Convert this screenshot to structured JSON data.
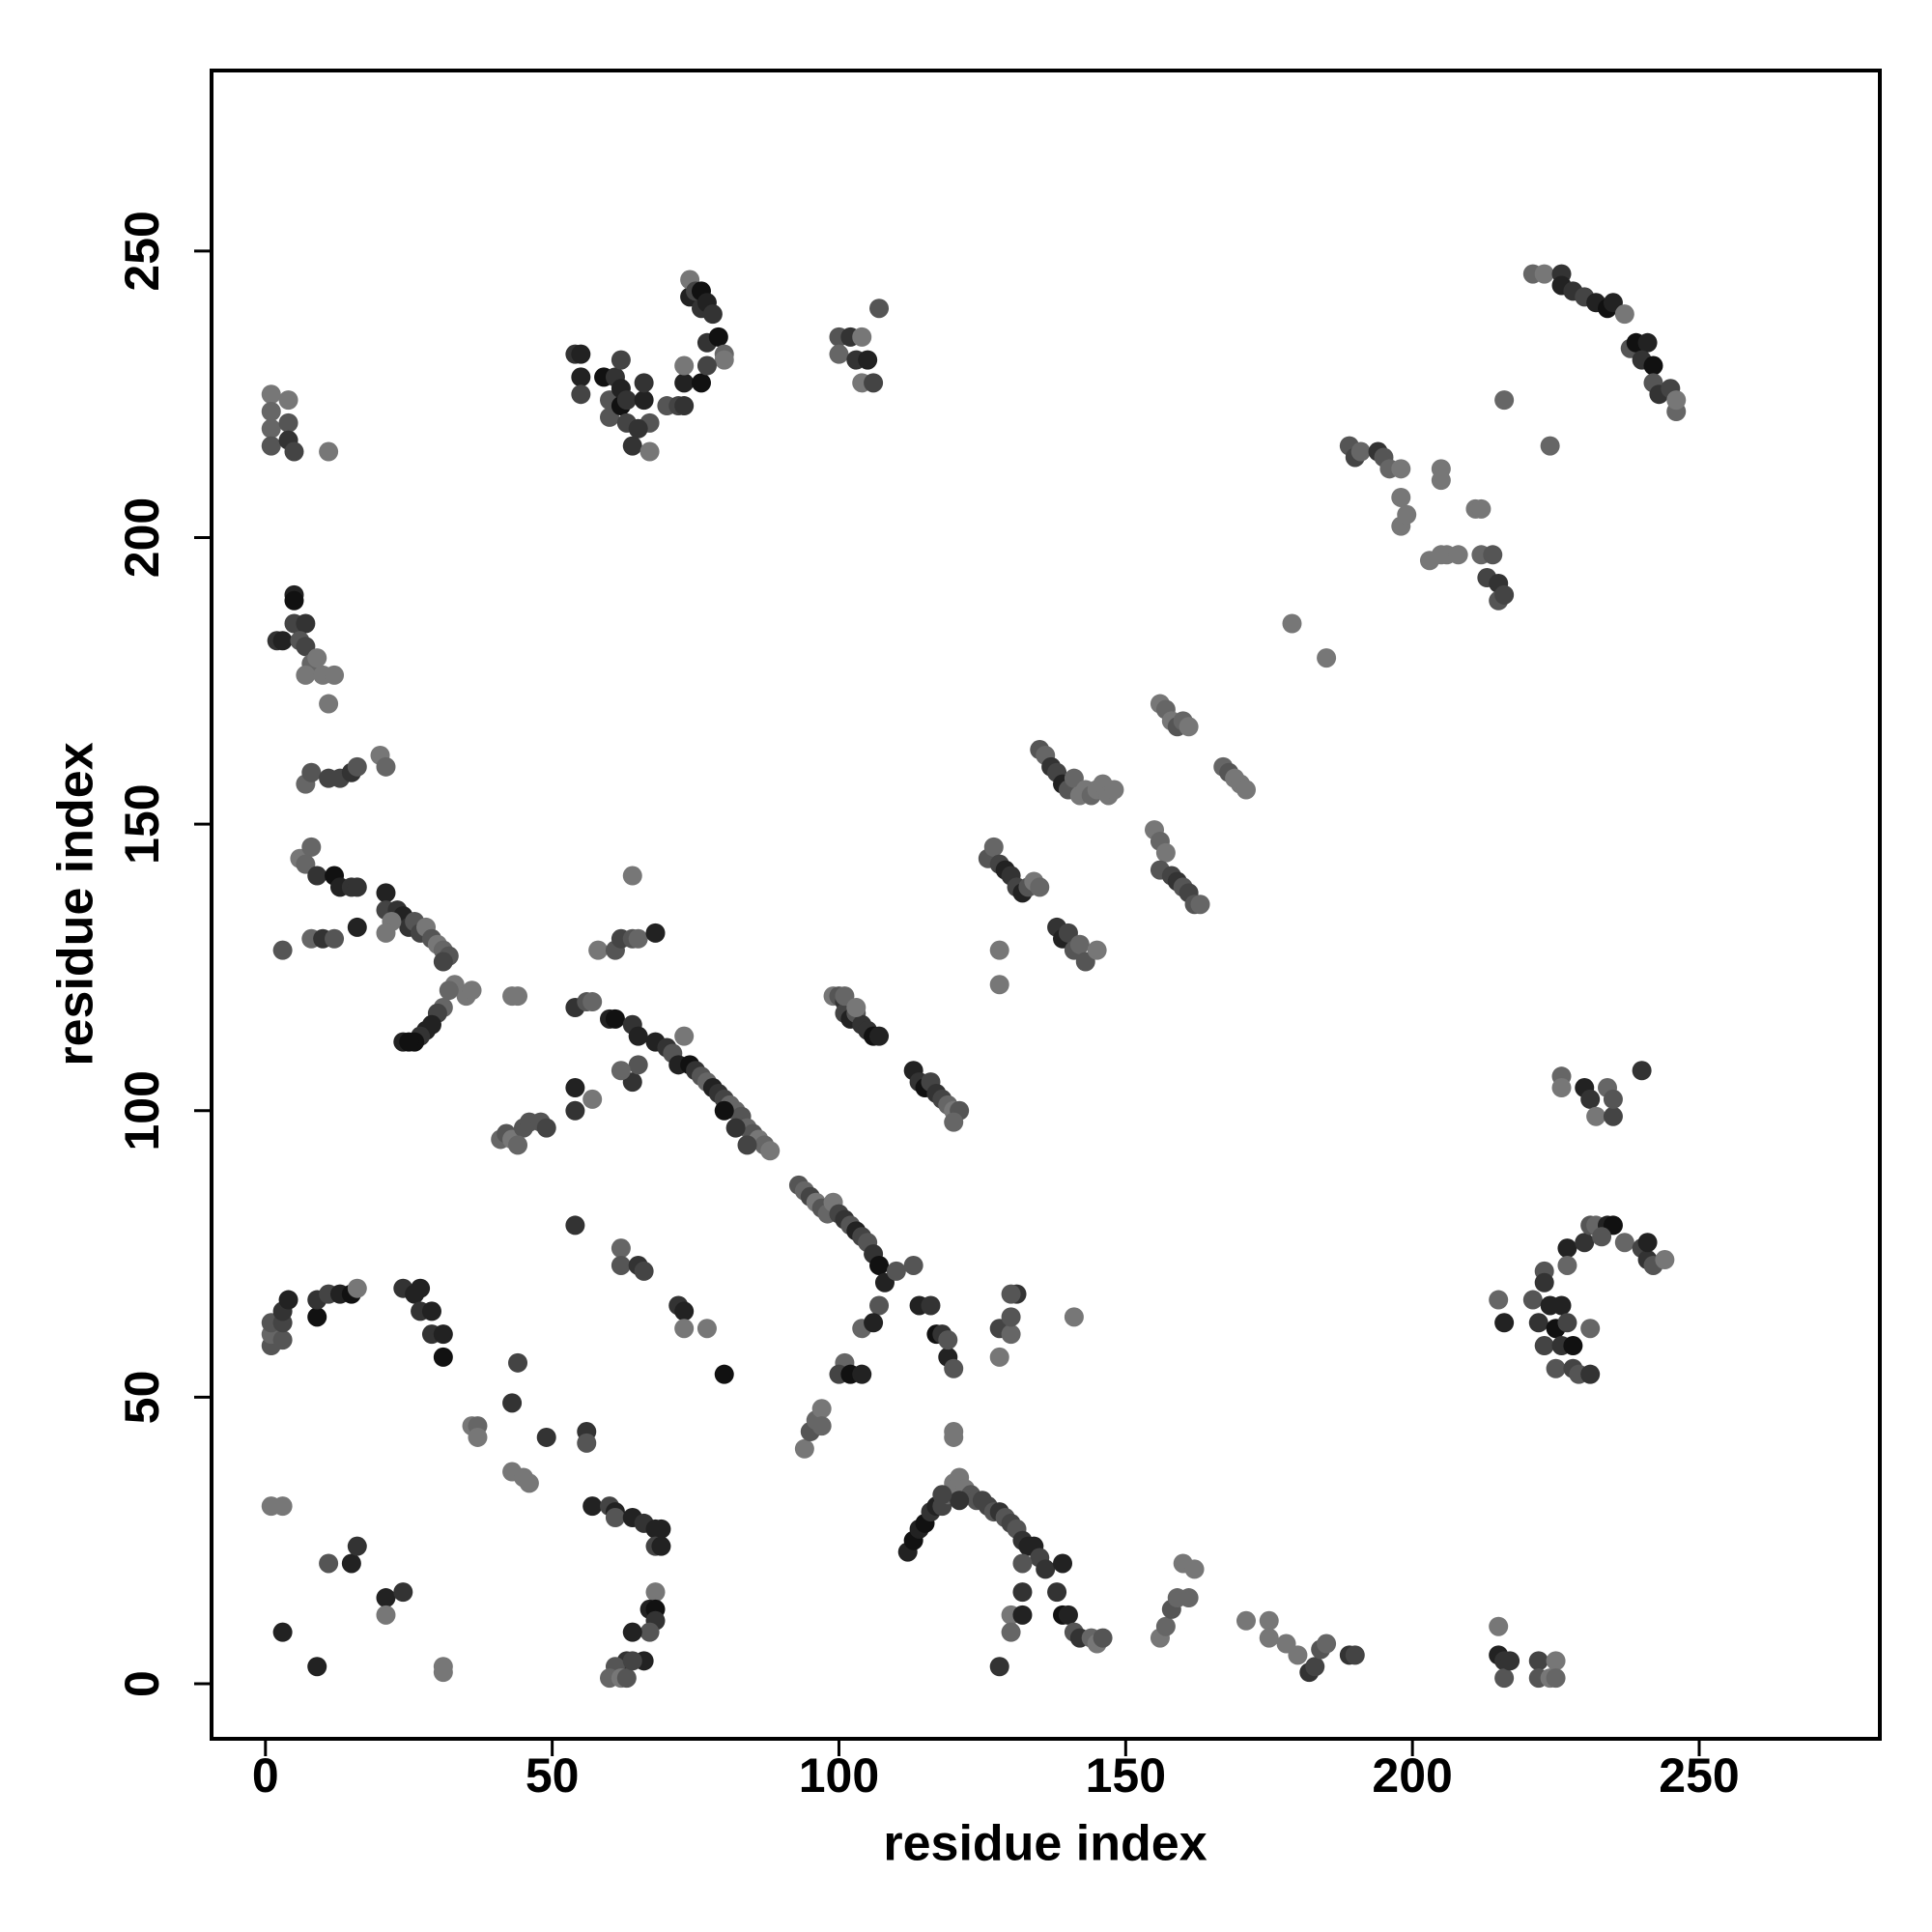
{
  "chart_data": {
    "type": "scatter",
    "xlabel": "residue index",
    "ylabel": "residue index",
    "xlim": [
      -9.4,
      281.5
    ],
    "ylim": [
      -9.6,
      281.5
    ],
    "xticks": [
      0,
      50,
      100,
      150,
      200,
      250
    ],
    "yticks": [
      0,
      50,
      100,
      150,
      200,
      250
    ],
    "x": [
      1,
      3,
      3,
      9,
      11,
      15,
      16,
      21,
      21,
      24,
      31,
      31,
      1,
      1,
      1,
      3,
      3,
      3,
      4,
      9,
      9,
      11,
      13,
      15,
      16,
      24,
      26,
      27,
      27,
      29,
      29,
      31,
      31,
      36,
      37,
      37,
      43,
      44,
      45,
      43,
      46,
      49,
      56,
      56,
      57,
      60,
      61,
      61,
      64,
      66,
      68,
      69,
      68,
      69,
      68,
      67,
      68,
      68,
      67,
      64,
      66,
      63,
      61,
      60,
      62,
      63,
      64,
      54,
      62,
      62,
      65,
      66,
      72,
      73,
      73,
      77,
      80,
      1,
      1,
      1,
      1,
      4,
      4,
      4,
      5,
      11,
      2,
      3,
      5,
      5,
      5,
      7,
      6,
      7,
      8,
      7,
      9,
      10,
      11,
      12,
      7,
      8,
      11,
      13,
      15,
      16,
      20,
      21,
      6,
      8,
      7,
      9,
      12,
      13,
      15,
      16,
      8,
      10,
      12,
      3,
      16,
      21,
      21,
      23,
      24,
      25,
      26,
      27,
      28,
      29,
      30,
      31,
      32,
      31,
      22,
      21,
      33,
      35,
      36,
      32,
      31,
      30,
      29,
      28,
      27,
      26,
      24,
      25,
      43,
      44,
      41,
      42,
      43,
      45,
      44,
      46,
      48,
      49,
      54,
      54,
      57,
      54,
      56,
      57,
      60,
      61,
      64,
      65,
      68,
      70,
      71,
      73,
      72,
      74,
      75,
      76,
      77,
      78,
      79,
      80,
      81,
      82,
      83,
      84,
      85,
      86,
      87,
      88,
      80,
      82,
      84,
      64,
      65,
      62,
      58,
      61,
      62,
      64,
      65,
      68,
      64,
      54,
      55,
      55,
      55,
      59,
      61,
      60,
      60,
      62,
      62,
      63,
      63,
      64,
      66,
      66,
      67,
      67,
      62,
      65,
      70,
      72,
      73,
      73,
      74,
      74,
      75,
      76,
      76,
      77,
      78,
      77,
      79,
      80,
      80,
      76,
      77,
      73,
      100,
      100,
      102,
      103,
      104,
      105,
      104,
      106,
      107,
      99,
      100,
      101,
      101,
      102,
      103,
      104,
      105,
      106,
      107,
      101,
      103,
      113,
      114,
      115,
      116,
      117,
      118,
      119,
      120,
      121,
      120,
      93,
      94,
      95,
      96,
      97,
      98,
      99,
      100,
      101,
      102,
      103,
      104,
      105,
      106,
      107,
      108,
      110,
      113,
      107,
      104,
      106,
      101,
      100,
      102,
      104,
      94,
      95,
      96,
      97,
      97,
      114,
      116,
      117,
      118,
      119,
      120,
      119,
      120,
      120,
      112,
      113,
      114,
      115,
      116,
      117,
      118,
      119,
      120,
      121,
      122,
      123,
      124,
      125,
      126,
      127,
      128,
      129,
      130,
      131,
      132,
      133,
      134,
      135,
      136,
      139,
      138,
      139,
      140,
      141,
      142,
      144,
      145,
      146,
      132,
      130,
      132,
      132,
      130,
      128,
      121,
      118,
      128,
      130,
      130,
      131,
      130,
      128,
      141,
      128,
      128,
      126,
      127,
      128,
      129,
      130,
      131,
      132,
      133,
      134,
      135,
      138,
      139,
      140,
      141,
      142,
      143,
      145,
      135,
      136,
      137,
      138,
      139,
      140,
      141,
      142,
      143,
      144,
      145,
      146,
      147,
      148,
      155,
      156,
      157,
      156,
      158,
      159,
      160,
      161,
      162,
      163,
      156,
      157,
      158,
      159,
      160,
      161,
      167,
      168,
      169,
      170,
      171,
      156,
      157,
      158,
      159,
      160,
      162,
      161,
      171,
      175,
      175,
      178,
      180,
      182,
      183,
      184,
      185,
      189,
      190,
      179,
      185,
      189,
      190,
      191,
      194,
      195,
      196,
      198,
      198,
      198,
      199,
      203,
      205,
      206,
      208,
      205,
      205,
      211,
      212,
      212,
      213,
      214,
      215,
      215,
      216,
      216,
      224,
      221,
      223,
      226,
      226,
      228,
      230,
      232,
      234,
      235,
      237,
      238,
      239,
      241,
      240,
      242,
      242,
      243,
      245,
      246,
      246,
      215,
      215,
      216,
      216,
      217,
      222,
      222,
      224,
      225,
      225,
      215,
      216,
      221,
      222,
      223,
      224,
      225,
      225,
      226,
      226,
      227,
      228,
      228,
      229,
      231,
      231,
      223,
      223,
      227,
      227,
      230,
      231,
      232,
      234,
      235,
      233,
      237,
      240,
      241,
      242,
      244,
      241,
      226,
      226,
      230,
      231,
      232,
      234,
      235,
      235,
      240
    ],
    "y": [
      31,
      31,
      9,
      3,
      21,
      21,
      24,
      15,
      12,
      16,
      3,
      2,
      59,
      61,
      63,
      60,
      63,
      65,
      67,
      64,
      67,
      68,
      68,
      68,
      69,
      69,
      68,
      69,
      65,
      65,
      61,
      61,
      57,
      45,
      45,
      43,
      37,
      56,
      36,
      49,
      35,
      43,
      44,
      42,
      31,
      31,
      30,
      29,
      29,
      28,
      27,
      27,
      24,
      24,
      16,
      13,
      13,
      11,
      9,
      9,
      4,
      4,
      3,
      1,
      1,
      1,
      4,
      80,
      76,
      73,
      73,
      72,
      66,
      65,
      62,
      62,
      54,
      225,
      222,
      219,
      216,
      224,
      220,
      217,
      215,
      215,
      182,
      182,
      190,
      189,
      185,
      185,
      182,
      181,
      178,
      176,
      179,
      176,
      171,
      176,
      157,
      159,
      158,
      158,
      159,
      160,
      162,
      160,
      144,
      146,
      143,
      141,
      141,
      139,
      139,
      139,
      130,
      130,
      130,
      128,
      132,
      138,
      135,
      135,
      134,
      132,
      133,
      131,
      132,
      130,
      129,
      128,
      127,
      126,
      133,
      131,
      122,
      120,
      121,
      121,
      118,
      117,
      115,
      114,
      113,
      112,
      112,
      112,
      120,
      120,
      95,
      96,
      95,
      97,
      94,
      98,
      98,
      97,
      104,
      100,
      102,
      118,
      119,
      119,
      116,
      116,
      115,
      113,
      112,
      111,
      110,
      113,
      108,
      108,
      107,
      106,
      105,
      104,
      103,
      102,
      101,
      100,
      99,
      97,
      96,
      95,
      94,
      93,
      100,
      97,
      94,
      105,
      108,
      107,
      128,
      128,
      130,
      130,
      130,
      131,
      141,
      232,
      232,
      228,
      225,
      228,
      228,
      224,
      221,
      226,
      223,
      224,
      220,
      216,
      224,
      227,
      220,
      215,
      231,
      219,
      223,
      223,
      227,
      230,
      242,
      245,
      243,
      240,
      243,
      241,
      239,
      234,
      235,
      232,
      231,
      227,
      230,
      223,
      235,
      232,
      235,
      231,
      235,
      231,
      227,
      227,
      240,
      120,
      120,
      119,
      117,
      116,
      117,
      115,
      114,
      113,
      113,
      120,
      118,
      107,
      105,
      104,
      105,
      103,
      102,
      101,
      100,
      100,
      98,
      87,
      86,
      85,
      84,
      83,
      82,
      84,
      82,
      81,
      80,
      79,
      78,
      77,
      75,
      73,
      70,
      72,
      73,
      66,
      62,
      63,
      56,
      54,
      54,
      54,
      41,
      44,
      46,
      48,
      45,
      66,
      66,
      61,
      61,
      57,
      55,
      60,
      44,
      43,
      23,
      25,
      27,
      28,
      30,
      31,
      31,
      33,
      35,
      36,
      34,
      33,
      32,
      32,
      31,
      30,
      30,
      29,
      28,
      27,
      25,
      24,
      24,
      22,
      20,
      21,
      16,
      12,
      12,
      9,
      8,
      8,
      7,
      8,
      21,
      12,
      12,
      16,
      9,
      3,
      32,
      33,
      62,
      61,
      64,
      68,
      68,
      57,
      64,
      128,
      122,
      144,
      146,
      143,
      142,
      141,
      139,
      138,
      139,
      140,
      139,
      132,
      130,
      131,
      128,
      129,
      126,
      128,
      163,
      162,
      160,
      159,
      157,
      156,
      158,
      155,
      156,
      155,
      156,
      157,
      155,
      156,
      149,
      147,
      145,
      142,
      141,
      140,
      139,
      138,
      136,
      136,
      171,
      170,
      168,
      167,
      168,
      167,
      160,
      159,
      158,
      157,
      156,
      8,
      10,
      13,
      15,
      21,
      20,
      15,
      11,
      11,
      8,
      7,
      5,
      2,
      3,
      6,
      7,
      5,
      5,
      185,
      179,
      216,
      214,
      215,
      215,
      214,
      212,
      212,
      207,
      202,
      204,
      196,
      197,
      197,
      197,
      212,
      210,
      205,
      205,
      197,
      193,
      197,
      192,
      189,
      190,
      224,
      216,
      246,
      246,
      246,
      244,
      243,
      242,
      241,
      240,
      241,
      239,
      233,
      234,
      234,
      231,
      230,
      227,
      225,
      226,
      222,
      224,
      10,
      5,
      4,
      1,
      4,
      4,
      1,
      1,
      4,
      1,
      67,
      63,
      67,
      63,
      59,
      66,
      62,
      55,
      66,
      59,
      63,
      59,
      55,
      54,
      54,
      62,
      72,
      70,
      76,
      73,
      77,
      80,
      80,
      80,
      80,
      78,
      77,
      76,
      74,
      73,
      74,
      77,
      106,
      104,
      104,
      102,
      99,
      104,
      99,
      102,
      107
    ],
    "colors": [
      "#777",
      "#777",
      "#222",
      "#222",
      "#555",
      "#222",
      "#333",
      "#222",
      "#777",
      "#333",
      "#777",
      "#777",
      "#555",
      "#666",
      "#555",
      "#555",
      "#444",
      "#333",
      "#222",
      "#111",
      "#333",
      "#444",
      "#222",
      "#111",
      "#777",
      "#333",
      "#222",
      "#222",
      "#333",
      "#222",
      "#333",
      "#222",
      "#111",
      "#777",
      "#666",
      "#777",
      "#777",
      "#444",
      "#777",
      "#333",
      "#777",
      "#333",
      "#333",
      "#555",
      "#222",
      "#444",
      "#222",
      "#555",
      "#222",
      "#333",
      "#222",
      "#222",
      "#444",
      "#222",
      "#777",
      "#222",
      "#111",
      "#333",
      "#555",
      "#222",
      "#222",
      "#333",
      "#555",
      "#666",
      "#777",
      "#555",
      "#444",
      "#333",
      "#666",
      "#555",
      "#333",
      "#444",
      "#333",
      "#222",
      "#777",
      "#777",
      "#111",
      "#777",
      "#666",
      "#666",
      "#555",
      "#777",
      "#555",
      "#333",
      "#444",
      "#777",
      "#333",
      "#222",
      "#222",
      "#111",
      "#444",
      "#333",
      "#555",
      "#444",
      "#666",
      "#777",
      "#777",
      "#777",
      "#777",
      "#777",
      "#666",
      "#555",
      "#444",
      "#444",
      "#333",
      "#555",
      "#777",
      "#666",
      "#777",
      "#666",
      "#666",
      "#333",
      "#111",
      "#222",
      "#333",
      "#333",
      "#666",
      "#333",
      "#555",
      "#555",
      "#222",
      "#222",
      "#444",
      "#333",
      "#222",
      "#333",
      "#555",
      "#444",
      "#777",
      "#555",
      "#777",
      "#666",
      "#555",
      "#444",
      "#777",
      "#777",
      "#777",
      "#777",
      "#777",
      "#666",
      "#666",
      "#444",
      "#222",
      "#222",
      "#333",
      "#111",
      "#222",
      "#111",
      "#777",
      "#777",
      "#666",
      "#555",
      "#777",
      "#555",
      "#666",
      "#555",
      "#555",
      "#444",
      "#222",
      "#333",
      "#777",
      "#333",
      "#555",
      "#666",
      "#222",
      "#111",
      "#333",
      "#222",
      "#222",
      "#333",
      "#555",
      "#777",
      "#222",
      "#111",
      "#333",
      "#555",
      "#666",
      "#222",
      "#333",
      "#444",
      "#666",
      "#666",
      "#555",
      "#666",
      "#555",
      "#777",
      "#666",
      "#777",
      "#111",
      "#333",
      "#444",
      "#333",
      "#555",
      "#666",
      "#777",
      "#555",
      "#444",
      "#555",
      "#666",
      "#222",
      "#777",
      "#333",
      "#222",
      "#222",
      "#444",
      "#111",
      "#333",
      "#555",
      "#555",
      "#222",
      "#111",
      "#333",
      "#444",
      "#333",
      "#222",
      "#333",
      "#555",
      "#777",
      "#444",
      "#333",
      "#555",
      "#444",
      "#222",
      "#777",
      "#222",
      "#777",
      "#444",
      "#333",
      "#111",
      "#222",
      "#333",
      "#333",
      "#111",
      "#666",
      "#777",
      "#111",
      "#444",
      "#333",
      "#555",
      "#666",
      "#333",
      "#333",
      "#777",
      "#222",
      "#777",
      "#444",
      "#555",
      "#777",
      "#555",
      "#333",
      "#444",
      "#222",
      "#555",
      "#333",
      "#333",
      "#111",
      "#222",
      "#666",
      "#777",
      "#222",
      "#333",
      "#111",
      "#444",
      "#333",
      "#444",
      "#666",
      "#777",
      "#555",
      "#666",
      "#555",
      "#666",
      "#444",
      "#777",
      "#555",
      "#666",
      "#777",
      "#444",
      "#333",
      "#555",
      "#222",
      "#444",
      "#555",
      "#333",
      "#111",
      "#222",
      "#555",
      "#555",
      "#555",
      "#666",
      "#222",
      "#666",
      "#444",
      "#111",
      "#222",
      "#777",
      "#555",
      "#666",
      "#777",
      "#666",
      "#222",
      "#333",
      "#111",
      "#333",
      "#222",
      "#555",
      "#555",
      "#777",
      "#777",
      "#222",
      "#111",
      "#222",
      "#111",
      "#333",
      "#222",
      "#444",
      "#666",
      "#777",
      "#777",
      "#777",
      "#555",
      "#555",
      "#444",
      "#444",
      "#555",
      "#333",
      "#555",
      "#444",
      "#555",
      "#333",
      "#222",
      "#222",
      "#444",
      "#333",
      "#222",
      "#333",
      "#111",
      "#222",
      "#555",
      "#333",
      "#666",
      "#777",
      "#555",
      "#555",
      "#777",
      "#222",
      "#333",
      "#666",
      "#333",
      "#333",
      "#444",
      "#444",
      "#666",
      "#555",
      "#333",
      "#555",
      "#777",
      "#777",
      "#777",
      "#777",
      "#555",
      "#666",
      "#444",
      "#222",
      "#333",
      "#444",
      "#222",
      "#555",
      "#777",
      "#666",
      "#333",
      "#222",
      "#444",
      "#555",
      "#666",
      "#555",
      "#777",
      "#555",
      "#666",
      "#333",
      "#444",
      "#222",
      "#555",
      "#666",
      "#777",
      "#777",
      "#666",
      "#777",
      "#777",
      "#777",
      "#777",
      "#777",
      "#666",
      "#777",
      "#555",
      "#444",
      "#333",
      "#555",
      "#444",
      "#555",
      "#666",
      "#777",
      "#666",
      "#777",
      "#555",
      "#666",
      "#777",
      "#666",
      "#555",
      "#777",
      "#777",
      "#777",
      "#777",
      "#666",
      "#555",
      "#666",
      "#777",
      "#777",
      "#666",
      "#777",
      "#777",
      "#777",
      "#777",
      "#777",
      "#333",
      "#444",
      "#555",
      "#666",
      "#333",
      "#444",
      "#777",
      "#777",
      "#555",
      "#444",
      "#666",
      "#333",
      "#555",
      "#666",
      "#777",
      "#777",
      "#777",
      "#777",
      "#777",
      "#777",
      "#777",
      "#777",
      "#777",
      "#777",
      "#777",
      "#777",
      "#666",
      "#444",
      "#555",
      "#333",
      "#555",
      "#444",
      "#666",
      "#666",
      "#666",
      "#777",
      "#333",
      "#222",
      "#333",
      "#444",
      "#222",
      "#111",
      "#222",
      "#777",
      "#555",
      "#111",
      "#222",
      "#333",
      "#111",
      "#555",
      "#333",
      "#444",
      "#666",
      "#777",
      "#777",
      "#222",
      "#333",
      "#555",
      "#333",
      "#444",
      "#555",
      "#777",
      "#777",
      "#666",
      "#666",
      "#222",
      "#555",
      "#333",
      "#444",
      "#222",
      "#111",
      "#555",
      "#222",
      "#333",
      "#444",
      "#111",
      "#444",
      "#555",
      "#333",
      "#666",
      "#555",
      "#333",
      "#222",
      "#666",
      "#333",
      "#555",
      "#666",
      "#222",
      "#111",
      "#555",
      "#666",
      "#444",
      "#333",
      "#555",
      "#777",
      "#222",
      "#666",
      "#777",
      "#222",
      "#333",
      "#777",
      "#666",
      "#444",
      "#555",
      "#333"
    ]
  }
}
